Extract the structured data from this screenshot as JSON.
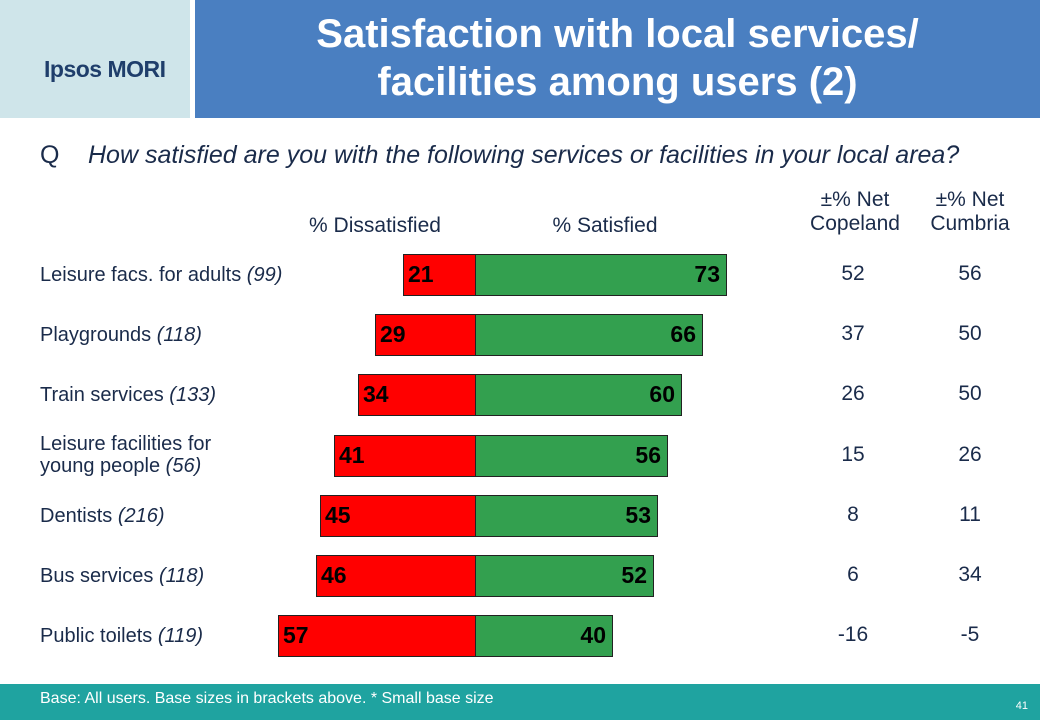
{
  "brand": {
    "logo_text": "Ipsos MORI"
  },
  "header": {
    "title_line1": "Satisfaction with local services/",
    "title_line2": "facilities among users (2)"
  },
  "question": {
    "letter": "Q",
    "text": "How satisfied are you with the following services or facilities in your local area?"
  },
  "columns": {
    "dissatisfied": "% Dissatisfied",
    "satisfied": "% Satisfied",
    "net_copeland_line1": "±% Net",
    "net_copeland_line2": "Copeland",
    "net_cumbria_line1": "±% Net",
    "net_cumbria_line2": "Cumbria"
  },
  "footer": {
    "base_note": "Base: All users.  Base sizes in brackets above.  * Small base size",
    "page_number": "41"
  },
  "colors": {
    "dissatisfied": "#ff0000",
    "satisfied": "#33a04f",
    "title_bar": "#4a7fc1",
    "footer_bar": "#1fa3a0"
  },
  "chart_data": {
    "type": "bar",
    "orientation": "horizontal-diverging",
    "categories": [
      "Leisure facs. for adults (99)",
      "Playgrounds (118)",
      "Train services (133)",
      "Leisure facilities for young people (56)",
      "Dentists (216)",
      "Bus services (118)",
      "Public toilets (119)"
    ],
    "rows": [
      {
        "label": "Leisure facs. for adults",
        "base": "(99)",
        "dissatisfied": 21,
        "satisfied": 73,
        "net_copeland": "52",
        "net_cumbria": "56"
      },
      {
        "label": "Playgrounds",
        "base": "(118)",
        "dissatisfied": 29,
        "satisfied": 66,
        "net_copeland": "37",
        "net_cumbria": "50"
      },
      {
        "label": "Train services",
        "base": "(133)",
        "dissatisfied": 34,
        "satisfied": 60,
        "net_copeland": "26",
        "net_cumbria": "50"
      },
      {
        "label_line1": "Leisure facilities for",
        "label": "young people",
        "base": "(56)",
        "dissatisfied": 41,
        "satisfied": 56,
        "net_copeland": "15",
        "net_cumbria": "26"
      },
      {
        "label": "Dentists",
        "base": "(216)",
        "dissatisfied": 45,
        "satisfied": 53,
        "net_copeland": "8",
        "net_cumbria": "11"
      },
      {
        "label": "Bus services",
        "base": "(118)",
        "dissatisfied": 46,
        "satisfied": 52,
        "net_copeland": "6",
        "net_cumbria": "34"
      },
      {
        "label": "Public toilets",
        "base": "(119)",
        "dissatisfied": 57,
        "satisfied": 40,
        "net_copeland": "-16",
        "net_cumbria": "-5"
      }
    ],
    "series": [
      {
        "name": "% Dissatisfied",
        "values": [
          21,
          29,
          34,
          41,
          45,
          46,
          57
        ]
      },
      {
        "name": "% Satisfied",
        "values": [
          73,
          66,
          60,
          56,
          53,
          52,
          40
        ]
      }
    ]
  }
}
